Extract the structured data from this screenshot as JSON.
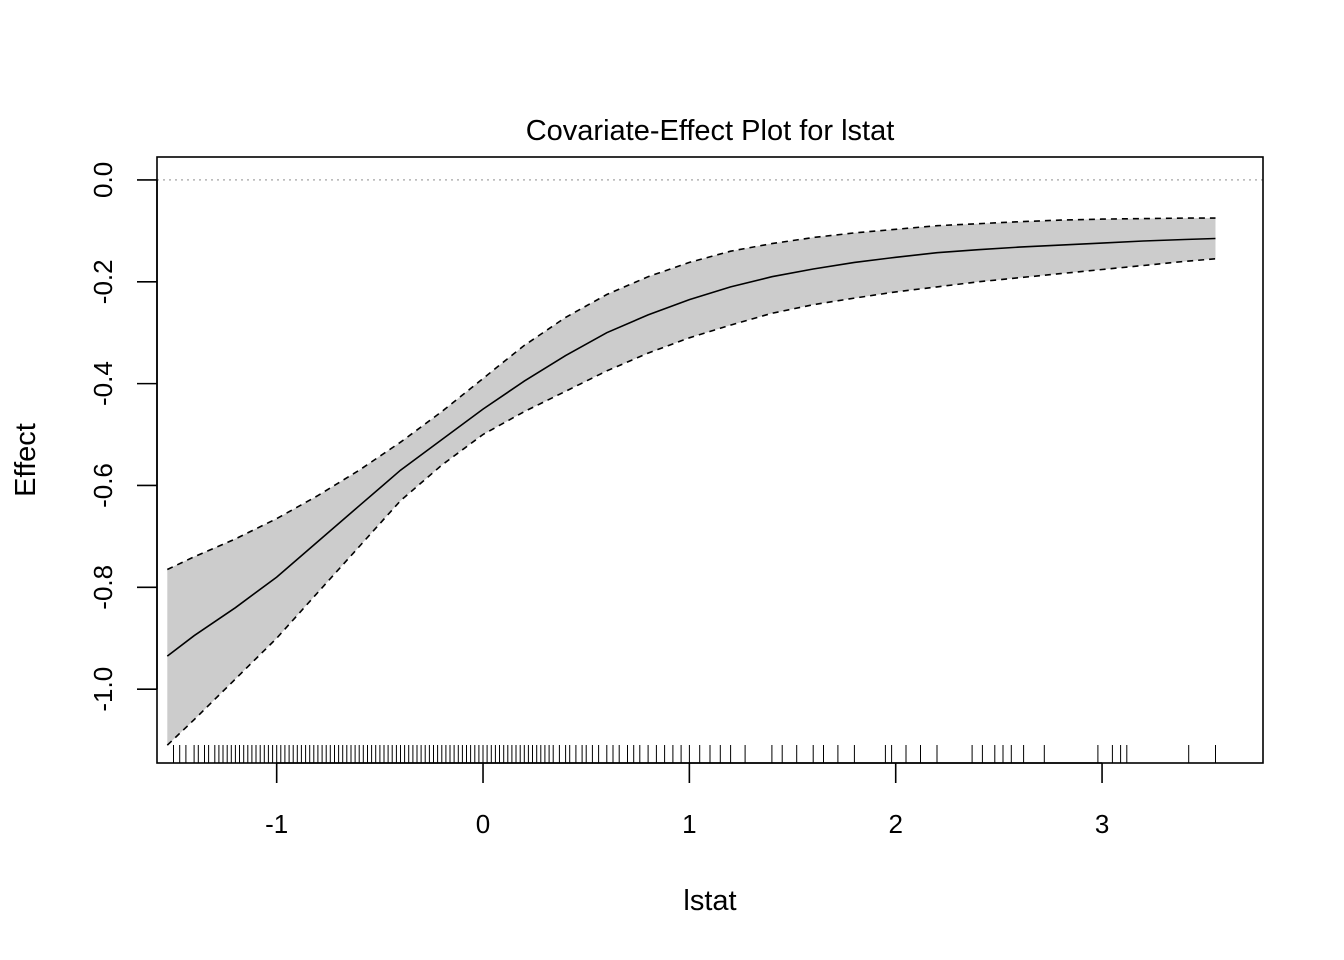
{
  "chart_data": {
    "type": "line",
    "title": "Covariate-Effect Plot for lstat",
    "xlabel": "lstat",
    "ylabel": "Effect",
    "xlim": [
      -1.58,
      3.78
    ],
    "ylim": [
      -1.145,
      0.045
    ],
    "x_ticks": [
      -1,
      0,
      1,
      2,
      3
    ],
    "x_tick_labels": [
      "-1",
      "0",
      "1",
      "2",
      "3"
    ],
    "y_ticks": [
      0.0,
      -0.2,
      -0.4,
      -0.6,
      -0.8,
      -1.0
    ],
    "y_tick_labels": [
      "0.0",
      "-0.2",
      "-0.4",
      "-0.6",
      "-0.8",
      "-1.0"
    ],
    "reference_line": {
      "y": 0.0,
      "style": "dotted",
      "color": "#b3b3b3"
    },
    "band_color": "#cccccc",
    "series": [
      {
        "role": "estimate",
        "style": "solid",
        "x": [
          -1.53,
          -1.4,
          -1.2,
          -1.0,
          -0.8,
          -0.6,
          -0.4,
          -0.2,
          0.0,
          0.2,
          0.4,
          0.6,
          0.8,
          1.0,
          1.2,
          1.4,
          1.6,
          1.8,
          2.0,
          2.2,
          2.4,
          2.6,
          2.8,
          3.0,
          3.2,
          3.4,
          3.55
        ],
        "y": [
          -0.935,
          -0.895,
          -0.84,
          -0.78,
          -0.71,
          -0.64,
          -0.57,
          -0.51,
          -0.45,
          -0.395,
          -0.345,
          -0.3,
          -0.265,
          -0.235,
          -0.21,
          -0.19,
          -0.175,
          -0.162,
          -0.152,
          -0.143,
          -0.137,
          -0.132,
          -0.128,
          -0.124,
          -0.12,
          -0.117,
          -0.115
        ]
      },
      {
        "role": "upper-bound",
        "style": "dashed",
        "x": [
          -1.53,
          -1.4,
          -1.2,
          -1.0,
          -0.8,
          -0.6,
          -0.4,
          -0.2,
          0.0,
          0.2,
          0.4,
          0.6,
          0.8,
          1.0,
          1.2,
          1.4,
          1.6,
          1.8,
          2.0,
          2.2,
          2.4,
          2.6,
          2.8,
          3.0,
          3.2,
          3.4,
          3.55
        ],
        "y": [
          -0.765,
          -0.74,
          -0.705,
          -0.665,
          -0.62,
          -0.57,
          -0.515,
          -0.455,
          -0.39,
          -0.325,
          -0.27,
          -0.225,
          -0.19,
          -0.162,
          -0.14,
          -0.125,
          -0.113,
          -0.104,
          -0.097,
          -0.09,
          -0.086,
          -0.082,
          -0.079,
          -0.077,
          -0.076,
          -0.075,
          -0.075
        ]
      },
      {
        "role": "lower-bound",
        "style": "dashed",
        "x": [
          -1.53,
          -1.4,
          -1.2,
          -1.0,
          -0.8,
          -0.6,
          -0.4,
          -0.2,
          0.0,
          0.2,
          0.4,
          0.6,
          0.8,
          1.0,
          1.2,
          1.4,
          1.6,
          1.8,
          2.0,
          2.2,
          2.4,
          2.6,
          2.8,
          3.0,
          3.2,
          3.4,
          3.55
        ],
        "y": [
          -1.11,
          -1.06,
          -0.98,
          -0.9,
          -0.81,
          -0.72,
          -0.63,
          -0.56,
          -0.5,
          -0.455,
          -0.415,
          -0.375,
          -0.34,
          -0.31,
          -0.285,
          -0.262,
          -0.245,
          -0.232,
          -0.22,
          -0.21,
          -0.2,
          -0.192,
          -0.184,
          -0.176,
          -0.168,
          -0.16,
          -0.155
        ]
      }
    ],
    "rug": [
      -1.5,
      -1.47,
      -1.44,
      -1.4,
      -1.38,
      -1.35,
      -1.33,
      -1.3,
      -1.28,
      -1.26,
      -1.24,
      -1.22,
      -1.2,
      -1.18,
      -1.16,
      -1.14,
      -1.12,
      -1.1,
      -1.08,
      -1.06,
      -1.04,
      -1.02,
      -1.0,
      -0.98,
      -0.96,
      -0.94,
      -0.92,
      -0.9,
      -0.88,
      -0.86,
      -0.84,
      -0.82,
      -0.8,
      -0.78,
      -0.76,
      -0.74,
      -0.72,
      -0.7,
      -0.68,
      -0.66,
      -0.64,
      -0.62,
      -0.6,
      -0.58,
      -0.56,
      -0.54,
      -0.52,
      -0.5,
      -0.48,
      -0.46,
      -0.44,
      -0.42,
      -0.4,
      -0.38,
      -0.36,
      -0.34,
      -0.32,
      -0.3,
      -0.28,
      -0.26,
      -0.24,
      -0.22,
      -0.2,
      -0.18,
      -0.16,
      -0.14,
      -0.12,
      -0.1,
      -0.08,
      -0.06,
      -0.04,
      -0.02,
      0.0,
      0.02,
      0.04,
      0.06,
      0.08,
      0.1,
      0.12,
      0.14,
      0.16,
      0.18,
      0.2,
      0.22,
      0.24,
      0.26,
      0.28,
      0.3,
      0.32,
      0.34,
      0.37,
      0.4,
      0.42,
      0.45,
      0.48,
      0.5,
      0.53,
      0.56,
      0.6,
      0.63,
      0.66,
      0.7,
      0.73,
      0.76,
      0.8,
      0.84,
      0.88,
      0.92,
      0.96,
      1.0,
      1.05,
      1.1,
      1.15,
      1.2,
      1.27,
      1.4,
      1.45,
      1.52,
      1.6,
      1.65,
      1.72,
      1.8,
      1.95,
      1.98,
      2.05,
      2.12,
      2.2,
      2.37,
      2.42,
      2.48,
      2.52,
      2.56,
      2.62,
      2.72,
      2.98,
      3.05,
      3.09,
      3.12,
      3.42,
      3.55
    ]
  }
}
